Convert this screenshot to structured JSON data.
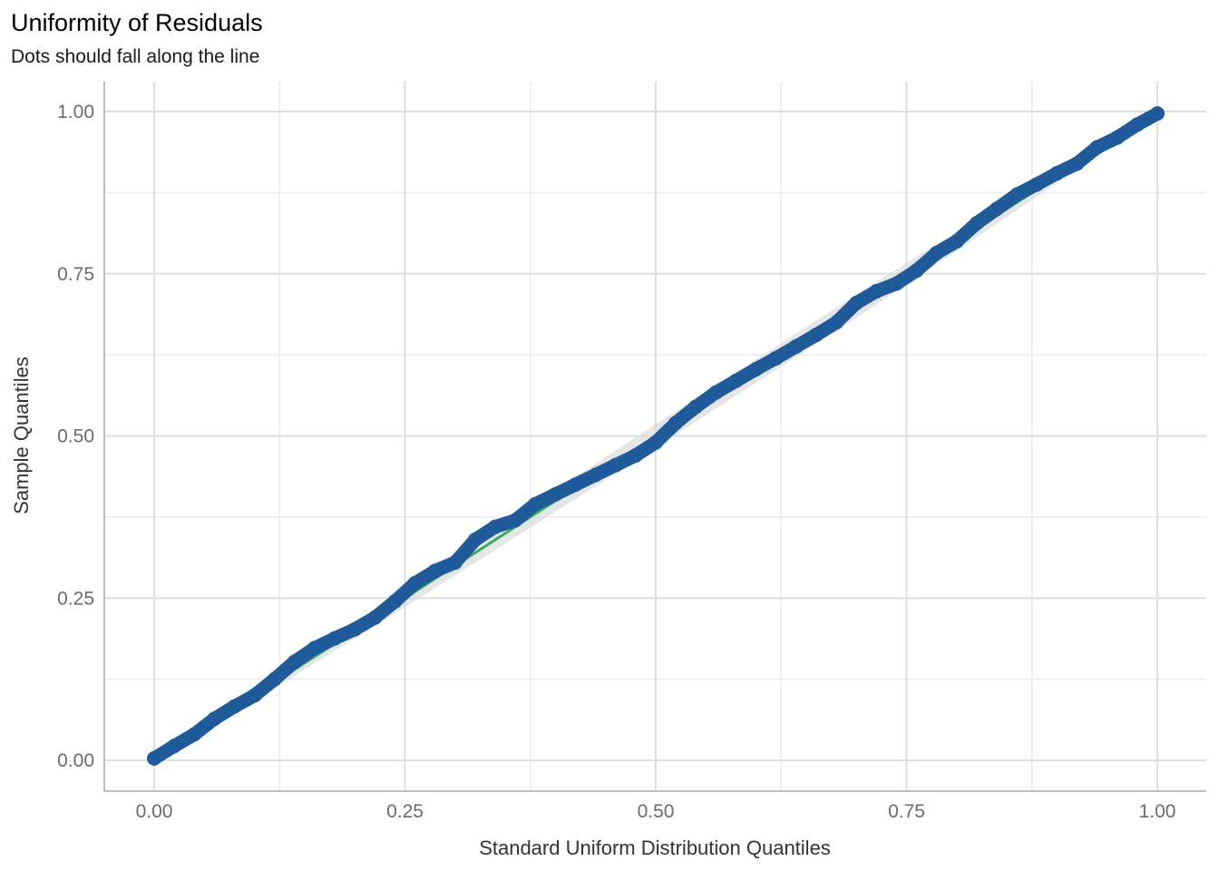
{
  "chart_data": {
    "type": "scatter",
    "title": "Uniformity of Residuals",
    "subtitle": "Dots should fall along the line",
    "xlabel": "Standard Uniform Distribution Quantiles",
    "ylabel": "Sample Quantiles",
    "xlim": [
      -0.02,
      1.02
    ],
    "ylim": [
      -0.05,
      1.05
    ],
    "x_ticks": [
      0,
      0.25,
      0.5,
      0.75,
      1
    ],
    "x_tick_labels": [
      "0.00",
      "0.25",
      "0.50",
      "0.75",
      "1.00"
    ],
    "y_ticks": [
      0,
      0.25,
      0.5,
      0.75,
      1
    ],
    "y_tick_labels": [
      "0.00",
      "0.25",
      "0.50",
      "0.75",
      "1.00"
    ],
    "grid": true,
    "legend": "none",
    "reference_line": {
      "x": [
        0,
        1
      ],
      "y": [
        0,
        1
      ],
      "color": "#3aaa5f"
    },
    "confidence_band": {
      "x": [
        0,
        0.1,
        0.2,
        0.3,
        0.4,
        0.5,
        0.6,
        0.7,
        0.8,
        0.9,
        1
      ],
      "lower": [
        0,
        0.092,
        0.188,
        0.285,
        0.383,
        0.482,
        0.582,
        0.682,
        0.785,
        0.89,
        1
      ],
      "upper": [
        0,
        0.108,
        0.212,
        0.315,
        0.417,
        0.518,
        0.618,
        0.718,
        0.815,
        0.91,
        1
      ],
      "color": "#d9d9d9"
    },
    "series": [
      {
        "color": "#1f5a9a",
        "x": [
          0,
          0.02,
          0.04,
          0.06,
          0.08,
          0.1,
          0.12,
          0.14,
          0.16,
          0.18,
          0.2,
          0.22,
          0.24,
          0.26,
          0.28,
          0.3,
          0.32,
          0.34,
          0.36,
          0.38,
          0.4,
          0.42,
          0.44,
          0.46,
          0.48,
          0.5,
          0.52,
          0.54,
          0.56,
          0.58,
          0.6,
          0.62,
          0.64,
          0.66,
          0.68,
          0.7,
          0.72,
          0.74,
          0.76,
          0.78,
          0.8,
          0.82,
          0.84,
          0.86,
          0.88,
          0.9,
          0.92,
          0.94,
          0.96,
          0.98,
          1
        ],
        "y": [
          0.003,
          0.022,
          0.04,
          0.064,
          0.083,
          0.1,
          0.125,
          0.152,
          0.173,
          0.188,
          0.202,
          0.22,
          0.245,
          0.273,
          0.292,
          0.305,
          0.34,
          0.36,
          0.37,
          0.395,
          0.41,
          0.425,
          0.44,
          0.455,
          0.47,
          0.49,
          0.52,
          0.545,
          0.567,
          0.585,
          0.603,
          0.62,
          0.638,
          0.656,
          0.675,
          0.705,
          0.723,
          0.735,
          0.755,
          0.782,
          0.8,
          0.828,
          0.85,
          0.872,
          0.888,
          0.905,
          0.92,
          0.945,
          0.96,
          0.98,
          0.997
        ]
      }
    ]
  }
}
